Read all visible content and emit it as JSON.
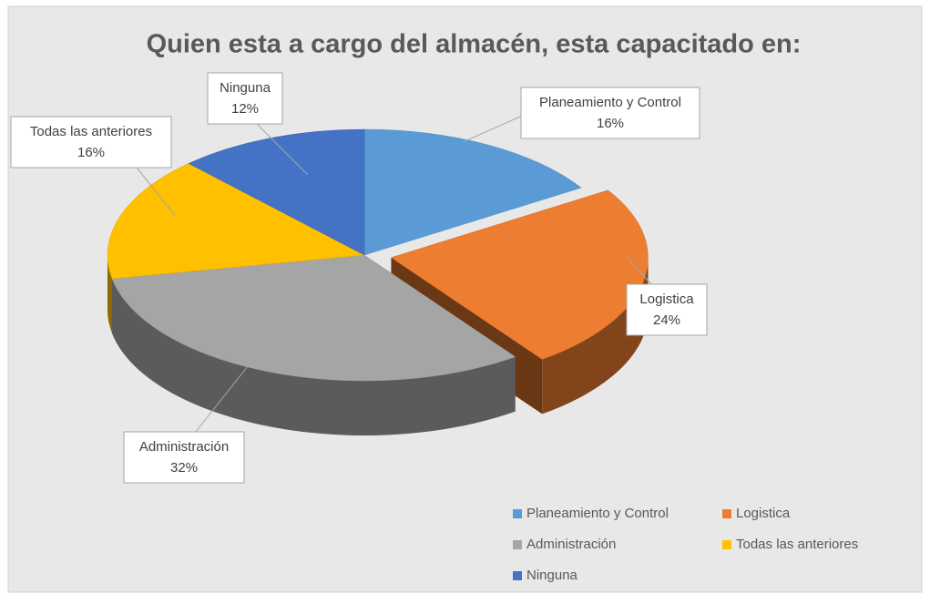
{
  "chart_data": {
    "type": "pie3d",
    "title": "Quien esta a cargo del almacén, esta capacitado en:",
    "categories": [
      "Planeamiento y Control",
      "Logistica",
      "Administración",
      "Todas las anteriores",
      "Ninguna"
    ],
    "values": [
      16,
      24,
      32,
      16,
      12
    ],
    "value_labels": [
      "16%",
      "24%",
      "32%",
      "16%",
      "12%"
    ],
    "colors": [
      "#5b9bd5",
      "#ed7d31",
      "#a5a5a5",
      "#ffc000",
      "#4472c4"
    ],
    "legend": "bottom-right"
  }
}
